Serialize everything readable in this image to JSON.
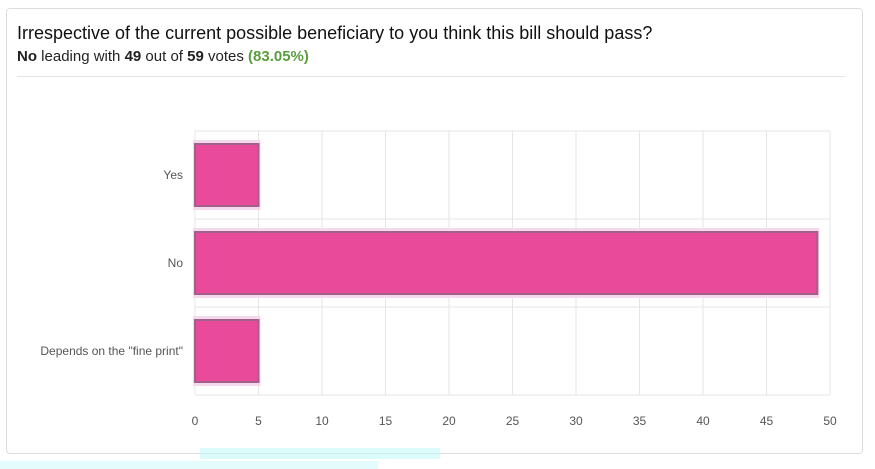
{
  "poll": {
    "question": "Irrespective of the current possible beneficiary to you think this bill should pass?",
    "leader": "No",
    "leading_with_text": "leading with",
    "leader_votes": "49",
    "out_of_text": "out of",
    "total_votes": "59",
    "votes_word": "votes",
    "leader_percent": "(83.05%)"
  },
  "chart_data": {
    "type": "bar",
    "orientation": "horizontal",
    "categories": [
      "Yes",
      "No",
      "Depends on the \"fine print\""
    ],
    "values": [
      5,
      49,
      5
    ],
    "xlim": [
      0,
      50
    ],
    "xticks": [
      0,
      5,
      10,
      15,
      20,
      25,
      30,
      35,
      40,
      45,
      50
    ],
    "grid": true,
    "bar_color": "#e94a9a",
    "bar_border_color": "#a0628a",
    "title": "",
    "xlabel": "",
    "ylabel": ""
  }
}
